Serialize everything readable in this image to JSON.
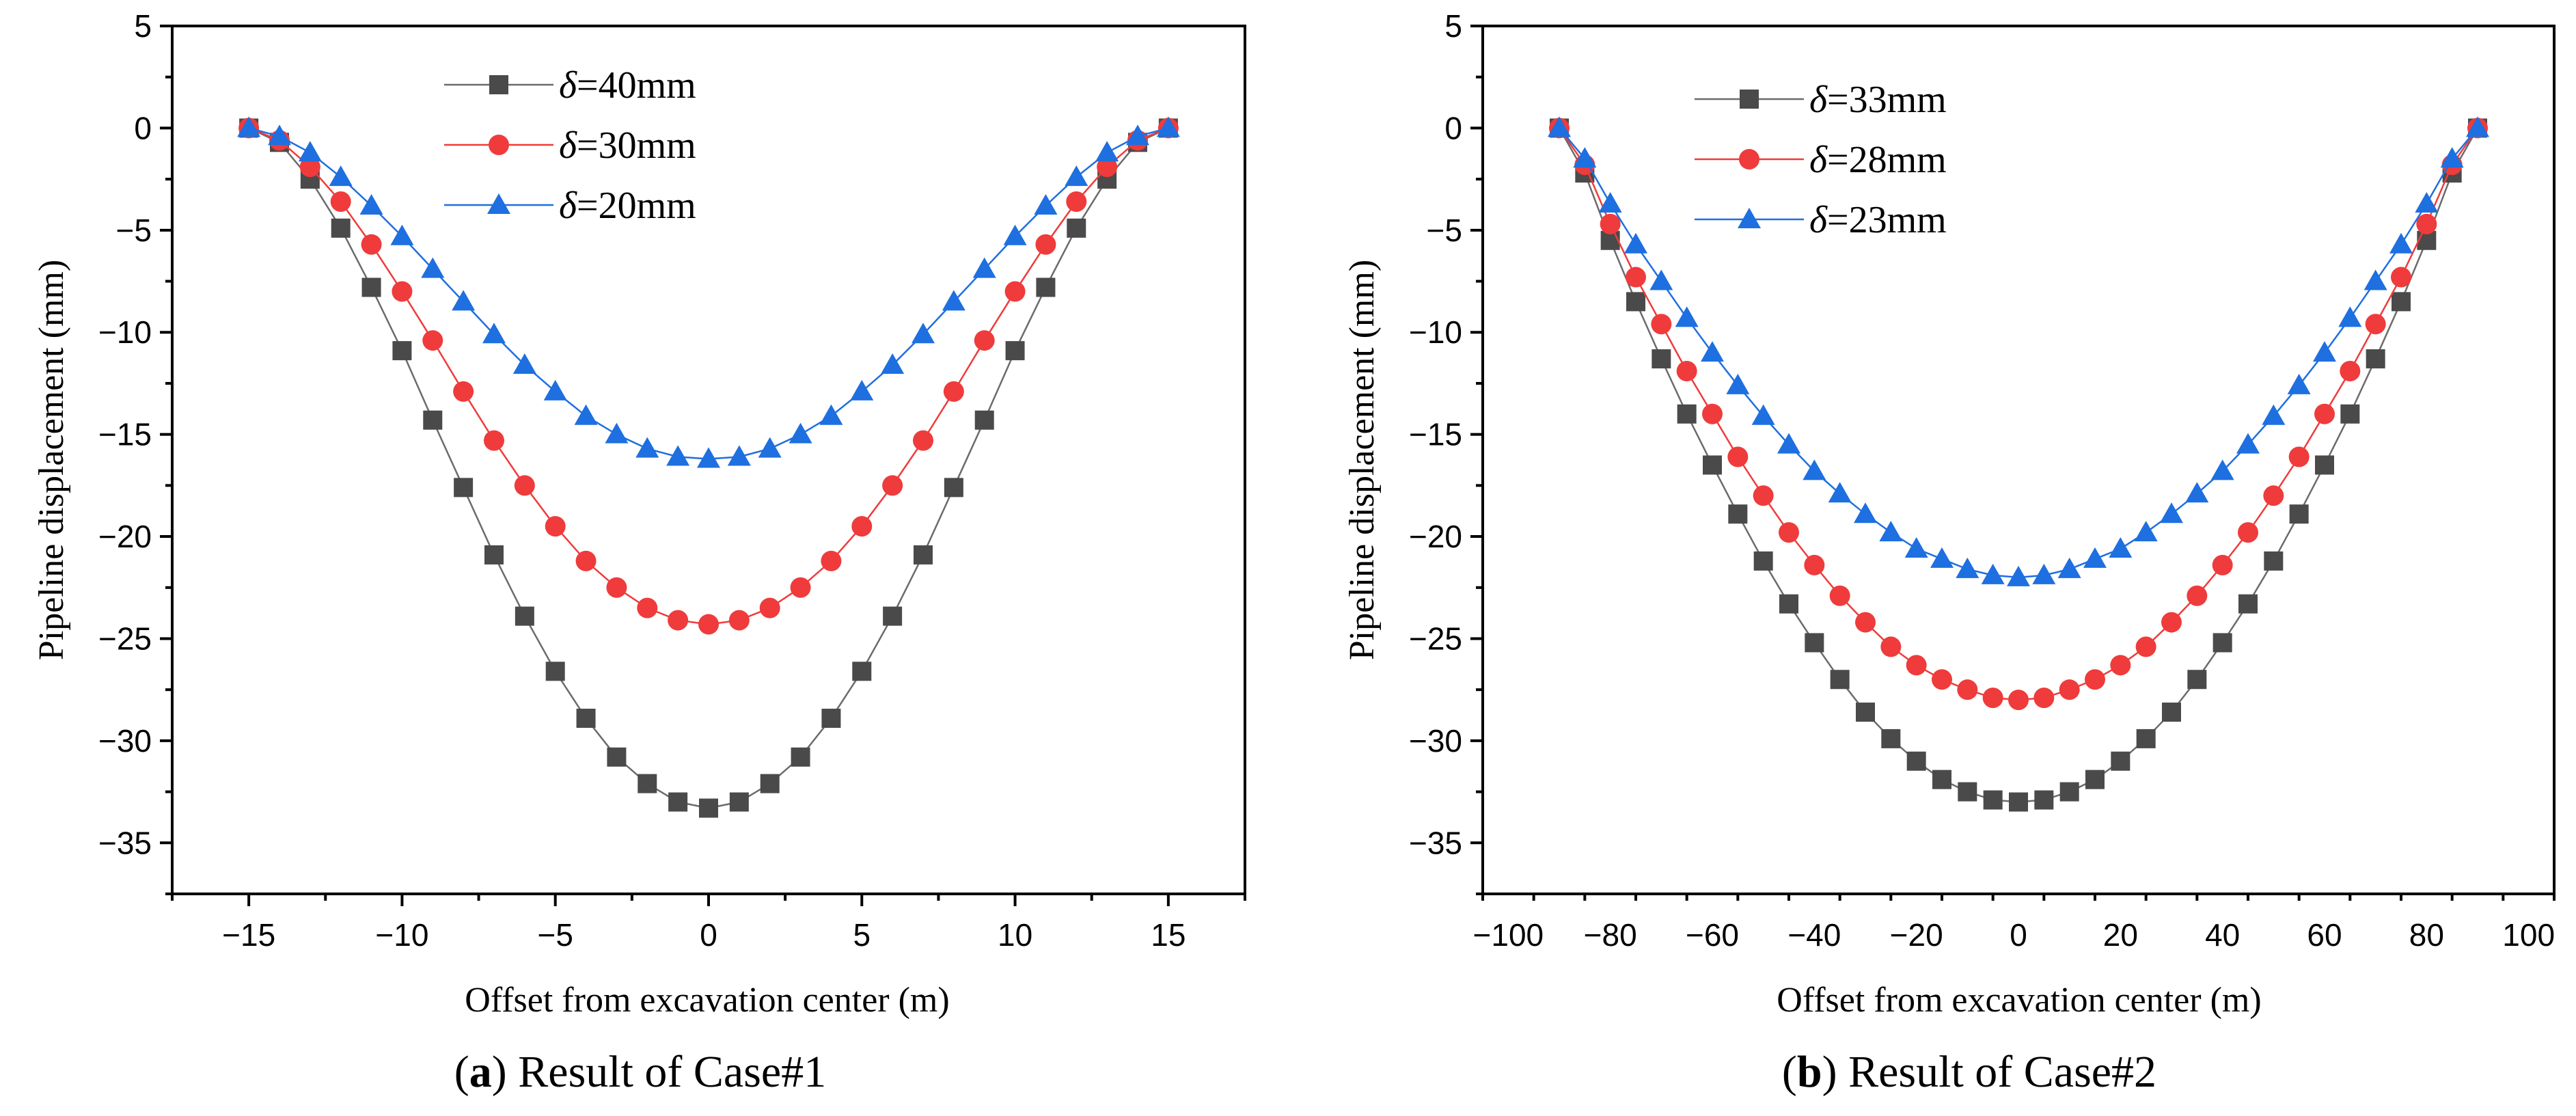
{
  "chart_data": [
    {
      "type": "line",
      "panel_letter": "a",
      "caption": "Result of Case#1",
      "xlabel": "Offset from excavation center (m)",
      "ylabel": "Pipeline displacement (mm)",
      "xlim": [
        -17.5,
        17.5
      ],
      "ylim": [
        -37.5,
        5
      ],
      "xticks": [
        -15,
        -10,
        -5,
        0,
        5,
        10,
        15
      ],
      "xtick_labels": [
        "−15",
        "−10",
        "−5",
        "0",
        "5",
        "10",
        "15"
      ],
      "yticks": [
        5,
        0,
        -5,
        -10,
        -15,
        -20,
        -25,
        -30,
        -35
      ],
      "ytick_labels": [
        "5",
        "0",
        "−5",
        "−10",
        "−15",
        "−20",
        "−25",
        "−30",
        "−35"
      ],
      "legend_position": "top-center",
      "x": [
        -15,
        -14,
        -13,
        -12,
        -11,
        -10,
        -9,
        -8,
        -7,
        -6,
        -5,
        -4,
        -3,
        -2,
        -1,
        0,
        1,
        2,
        3,
        4,
        5,
        6,
        7,
        8,
        9,
        10,
        11,
        12,
        13,
        14,
        15
      ],
      "series": [
        {
          "name_symbol": "δ",
          "name_rest": "=40mm",
          "color": "#4a4a4a",
          "line_color": "#6b6b6b",
          "marker": "square",
          "values": [
            0,
            -0.7,
            -2.5,
            -4.9,
            -7.8,
            -10.9,
            -14.3,
            -17.6,
            -20.9,
            -23.9,
            -26.6,
            -28.9,
            -30.8,
            -32.1,
            -33.0,
            -33.3,
            -33.0,
            -32.1,
            -30.8,
            -28.9,
            -26.6,
            -23.9,
            -20.9,
            -17.6,
            -14.3,
            -10.9,
            -7.8,
            -4.9,
            -2.5,
            -0.7,
            0
          ]
        },
        {
          "name_symbol": "δ",
          "name_rest": "=30mm",
          "color": "#ef3b3b",
          "line_color": "#ef3b3b",
          "marker": "circle",
          "values": [
            0,
            -0.6,
            -1.9,
            -3.6,
            -5.7,
            -8.0,
            -10.4,
            -12.9,
            -15.3,
            -17.5,
            -19.5,
            -21.2,
            -22.5,
            -23.5,
            -24.1,
            -24.3,
            -24.1,
            -23.5,
            -22.5,
            -21.2,
            -19.5,
            -17.5,
            -15.3,
            -12.9,
            -10.4,
            -8.0,
            -5.7,
            -3.6,
            -1.9,
            -0.6,
            0
          ]
        },
        {
          "name_symbol": "δ",
          "name_rest": "=20mm",
          "color": "#1e6fe0",
          "line_color": "#1e6fe0",
          "marker": "triangle",
          "values": [
            0,
            -0.4,
            -1.2,
            -2.4,
            -3.8,
            -5.3,
            -6.9,
            -8.5,
            -10.1,
            -11.6,
            -12.9,
            -14.1,
            -15.0,
            -15.7,
            -16.1,
            -16.2,
            -16.1,
            -15.7,
            -15.0,
            -14.1,
            -12.9,
            -11.6,
            -10.1,
            -8.5,
            -6.9,
            -5.3,
            -3.8,
            -2.4,
            -1.2,
            -0.4,
            0
          ]
        }
      ]
    },
    {
      "type": "line",
      "panel_letter": "b",
      "caption": "Result of Case#2",
      "xlabel": "Offset from excavation center (m)",
      "ylabel": "Pipeline displacement (mm)",
      "xlim": [
        -105,
        105
      ],
      "ylim": [
        -37.5,
        5
      ],
      "xticks": [
        -100,
        -80,
        -60,
        -40,
        -20,
        0,
        20,
        40,
        60,
        80,
        100
      ],
      "xtick_labels": [
        "−100",
        "−80",
        "−60",
        "−40",
        "−20",
        "0",
        "20",
        "40",
        "60",
        "80",
        "100"
      ],
      "yticks": [
        5,
        0,
        -5,
        -10,
        -15,
        -20,
        -25,
        -30,
        -35
      ],
      "ytick_labels": [
        "5",
        "0",
        "−5",
        "−10",
        "−15",
        "−20",
        "−25",
        "−30",
        "−35"
      ],
      "legend_position": "top-center",
      "x": [
        -90,
        -85,
        -80,
        -75,
        -70,
        -65,
        -60,
        -55,
        -50,
        -45,
        -40,
        -35,
        -30,
        -25,
        -20,
        -15,
        -10,
        -5,
        0,
        5,
        10,
        15,
        20,
        25,
        30,
        35,
        40,
        45,
        50,
        55,
        60,
        65,
        70,
        75,
        80,
        85,
        90
      ],
      "series": [
        {
          "name_symbol": "δ",
          "name_rest": "=33mm",
          "color": "#4a4a4a",
          "line_color": "#6b6b6b",
          "marker": "square",
          "values": [
            0,
            -2.2,
            -5.5,
            -8.5,
            -11.3,
            -14.0,
            -16.5,
            -18.9,
            -21.2,
            -23.3,
            -25.2,
            -27.0,
            -28.6,
            -29.9,
            -31.0,
            -31.9,
            -32.5,
            -32.9,
            -33.0,
            -32.9,
            -32.5,
            -31.9,
            -31.0,
            -29.9,
            -28.6,
            -27.0,
            -25.2,
            -23.3,
            -21.2,
            -18.9,
            -16.5,
            -14.0,
            -11.3,
            -8.5,
            -5.5,
            -2.2,
            0
          ]
        },
        {
          "name_symbol": "δ",
          "name_rest": "=28mm",
          "color": "#ef3b3b",
          "line_color": "#ef3b3b",
          "marker": "circle",
          "values": [
            0,
            -1.8,
            -4.7,
            -7.3,
            -9.6,
            -11.9,
            -14.0,
            -16.1,
            -18.0,
            -19.8,
            -21.4,
            -22.9,
            -24.2,
            -25.4,
            -26.3,
            -27.0,
            -27.5,
            -27.9,
            -28.0,
            -27.9,
            -27.5,
            -27.0,
            -26.3,
            -25.4,
            -24.2,
            -22.9,
            -21.4,
            -19.8,
            -18.0,
            -16.1,
            -14.0,
            -11.9,
            -9.6,
            -7.3,
            -4.7,
            -1.8,
            0
          ]
        },
        {
          "name_symbol": "δ",
          "name_rest": "=23mm",
          "color": "#1e6fe0",
          "line_color": "#1e6fe0",
          "marker": "triangle",
          "values": [
            0,
            -1.5,
            -3.7,
            -5.7,
            -7.5,
            -9.3,
            -11.0,
            -12.6,
            -14.1,
            -15.5,
            -16.8,
            -17.9,
            -18.9,
            -19.8,
            -20.6,
            -21.1,
            -21.6,
            -21.9,
            -22.0,
            -21.9,
            -21.6,
            -21.1,
            -20.6,
            -19.8,
            -18.9,
            -17.9,
            -16.8,
            -15.5,
            -14.1,
            -12.6,
            -11.0,
            -9.3,
            -7.5,
            -5.7,
            -3.7,
            -1.5,
            0
          ]
        }
      ]
    }
  ]
}
